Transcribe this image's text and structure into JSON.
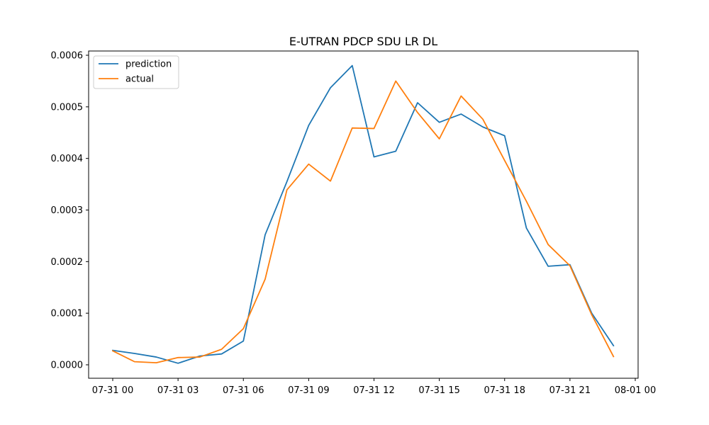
{
  "chart_data": {
    "type": "line",
    "title": "E-UTRAN PDCP SDU LR DL",
    "xlabel": "",
    "ylabel": "",
    "x_axis": {
      "type": "time",
      "ticks": [
        "07-31 00",
        "07-31 03",
        "07-31 06",
        "07-31 09",
        "07-31 12",
        "07-31 15",
        "07-31 18",
        "07-31 21",
        "08-01 00"
      ],
      "range": [
        "07-31 00",
        "08-01 00"
      ]
    },
    "y_axis": {
      "range": [
        0.0,
        0.0006
      ],
      "ticks": [
        "0.0000",
        "0.0001",
        "0.0002",
        "0.0003",
        "0.0004",
        "0.0005",
        "0.0006"
      ]
    },
    "x": [
      "07-31 00",
      "07-31 01",
      "07-31 02",
      "07-31 03",
      "07-31 04",
      "07-31 05",
      "07-31 06",
      "07-31 07",
      "07-31 08",
      "07-31 09",
      "07-31 10",
      "07-31 11",
      "07-31 12",
      "07-31 13",
      "07-31 14",
      "07-31 15",
      "07-31 16",
      "07-31 17",
      "07-31 18",
      "07-31 19",
      "07-31 20",
      "07-31 21",
      "07-31 22",
      "07-31 23"
    ],
    "series": [
      {
        "name": "prediction",
        "color": "#1f77b4",
        "values": [
          2.8e-05,
          2.2e-05,
          1.5e-05,
          3e-06,
          1.7e-05,
          2.1e-05,
          4.6e-05,
          0.000252,
          0.000355,
          0.000464,
          0.000537,
          0.00058,
          0.000403,
          0.000414,
          0.000508,
          0.00047,
          0.000486,
          0.000461,
          0.000444,
          0.000265,
          0.000191,
          0.000194,
          0.0001,
          3.7e-05
        ]
      },
      {
        "name": "actual",
        "color": "#ff7f0e",
        "values": [
          2.7e-05,
          6e-06,
          4e-06,
          1.4e-05,
          1.5e-05,
          3e-05,
          7e-05,
          0.000166,
          0.000339,
          0.000389,
          0.000356,
          0.000459,
          0.000458,
          0.00055,
          0.000489,
          0.000438,
          0.000521,
          0.000476,
          0.000396,
          0.000317,
          0.000233,
          0.000192,
          9.7e-05,
          1.6e-05
        ]
      }
    ],
    "grid": false,
    "legend": "top-left"
  }
}
